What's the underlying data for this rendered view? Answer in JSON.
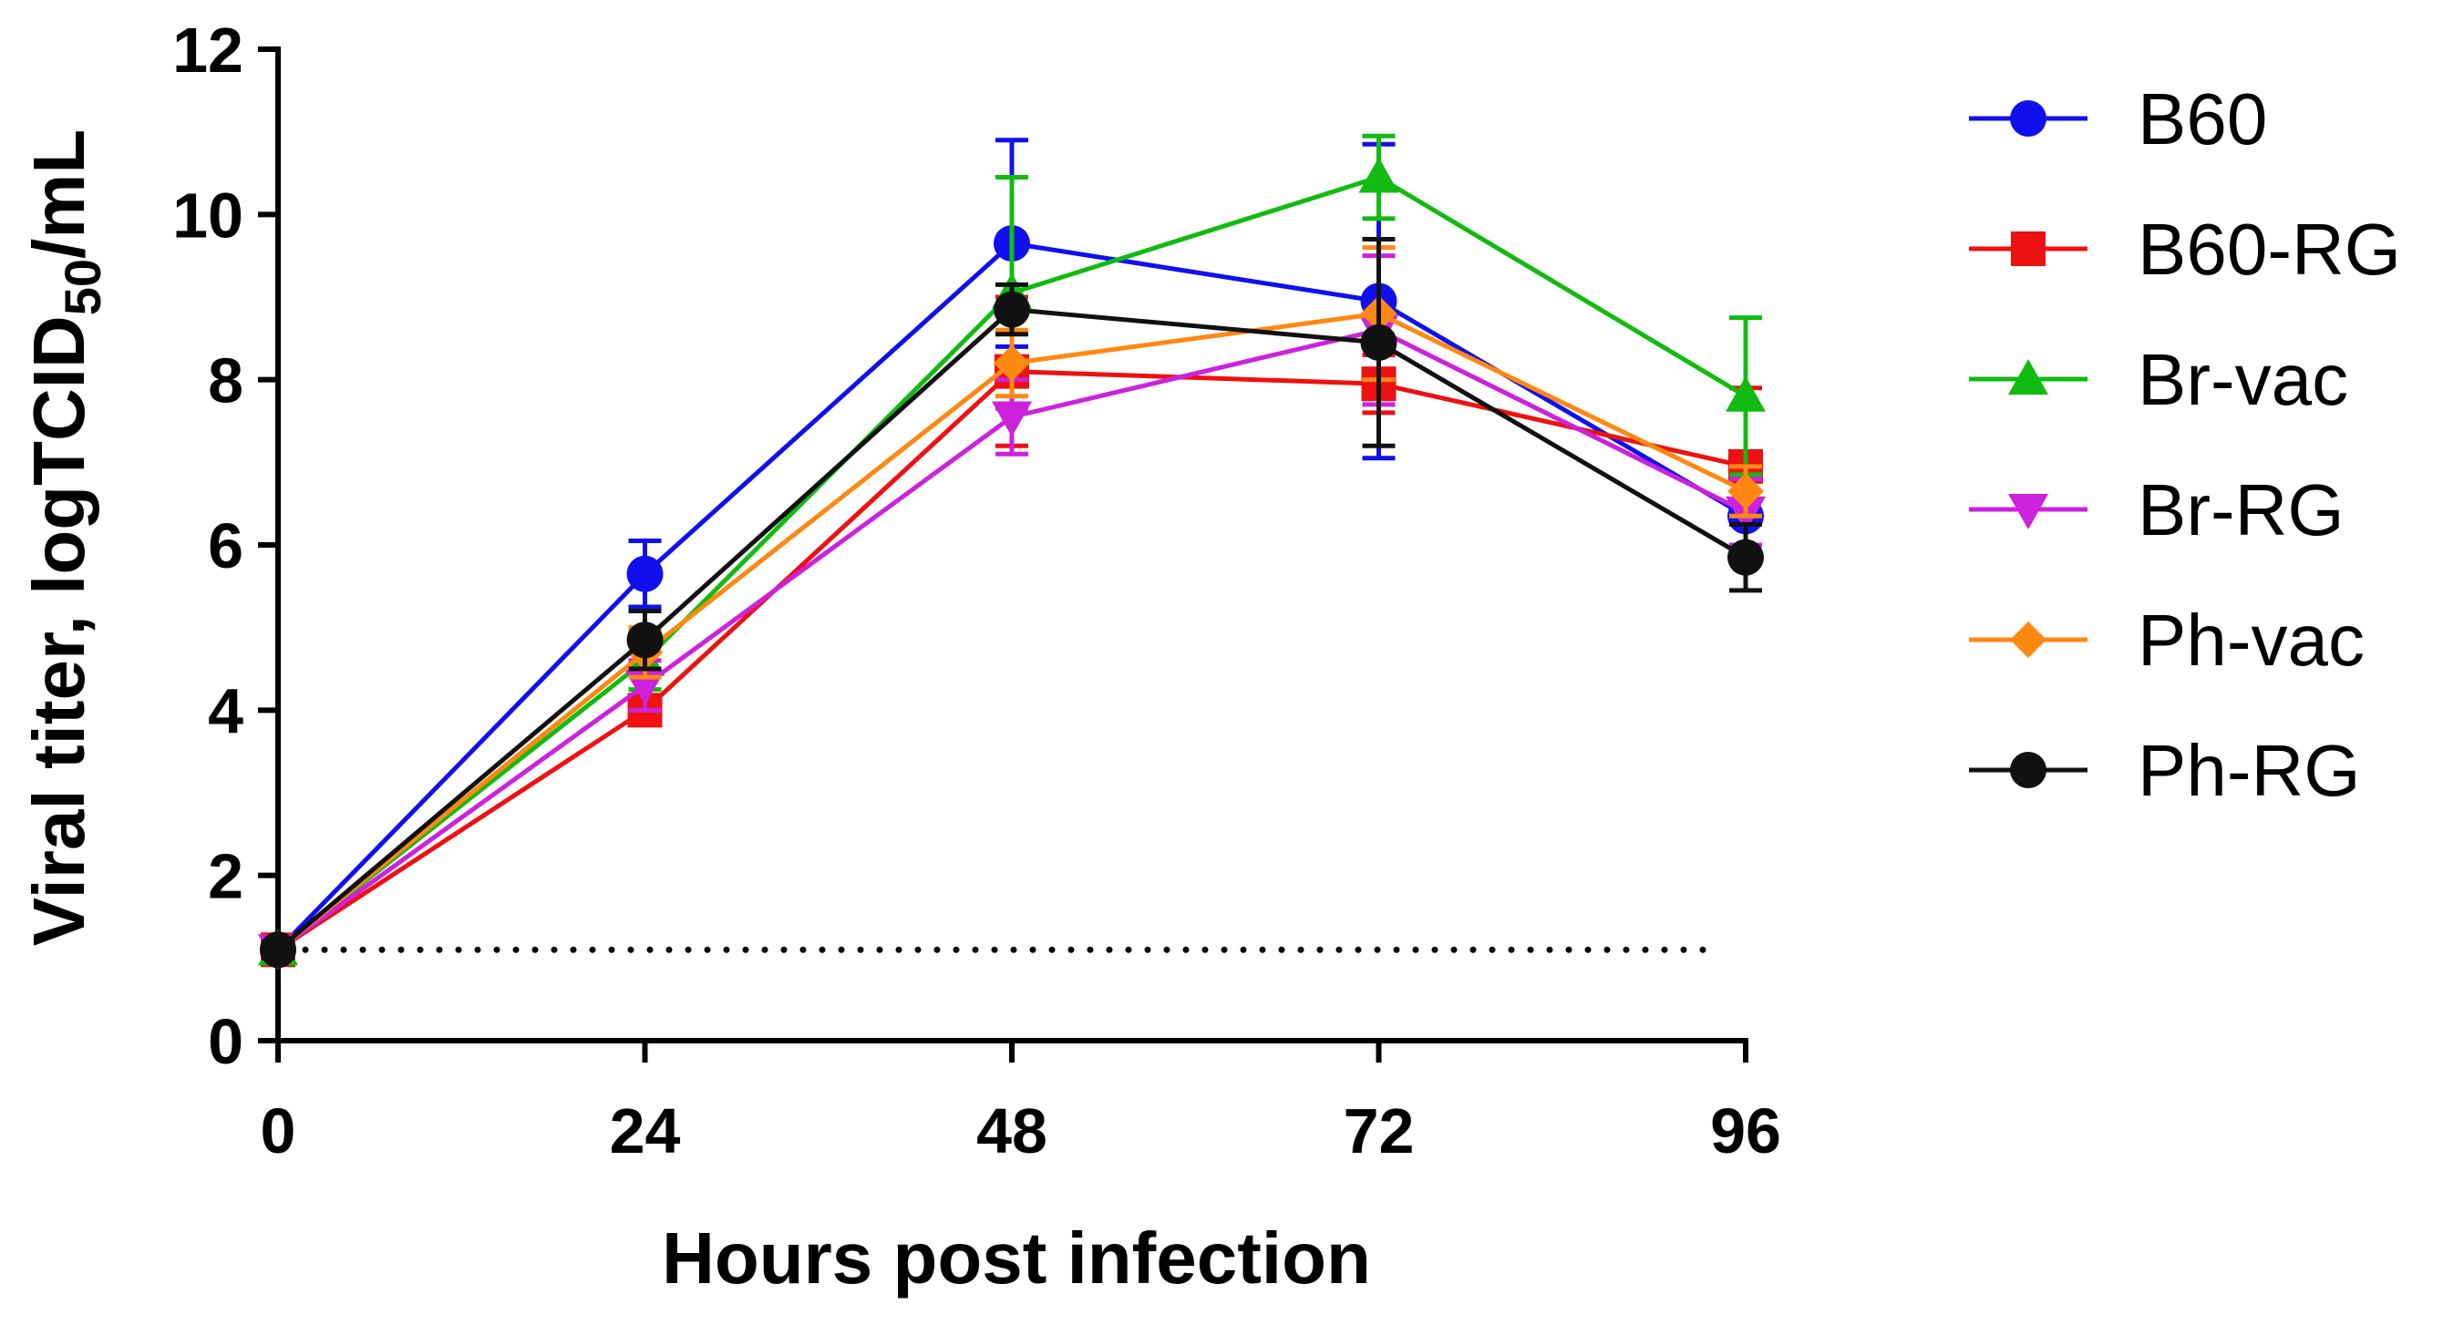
{
  "chart_data": {
    "type": "line",
    "title": "",
    "xlabel": "Hours post infection",
    "ylabel": {
      "main": "Viral titer, logTCID",
      "sub": "50",
      "tail": "/mL"
    },
    "x": [
      0,
      24,
      48,
      72,
      96
    ],
    "xticks": [
      "0",
      "24",
      "48",
      "72",
      "96"
    ],
    "yticks": [
      "0",
      "2",
      "4",
      "6",
      "8",
      "10",
      "12"
    ],
    "xlim": [
      0,
      96
    ],
    "ylim": [
      0,
      12
    ],
    "detection_limit": 1.1,
    "legend_position": "right",
    "series": [
      {
        "name": "B60",
        "color": "#1010ee",
        "marker": "circle",
        "values": [
          1.1,
          5.65,
          9.65,
          8.95,
          6.35
        ],
        "errors": [
          0.1,
          0.4,
          1.25,
          1.9,
          0.45
        ]
      },
      {
        "name": "B60-RG",
        "color": "#ee1111",
        "marker": "square",
        "values": [
          1.1,
          4.0,
          8.1,
          7.95,
          6.95
        ],
        "errors": [
          0.1,
          0.15,
          0.9,
          0.35,
          0.95
        ]
      },
      {
        "name": "Br-vac",
        "color": "#11bb11",
        "marker": "triangle-up",
        "values": [
          1.1,
          4.6,
          9.05,
          10.45,
          7.8
        ],
        "errors": [
          0.1,
          0.35,
          1.4,
          0.5,
          0.95
        ]
      },
      {
        "name": "Br-RG",
        "color": "#cc22dd",
        "marker": "triangle-down",
        "values": [
          1.1,
          4.3,
          7.55,
          8.6,
          6.4
        ],
        "errors": [
          0.1,
          0.3,
          0.45,
          0.9,
          0.4
        ]
      },
      {
        "name": "Ph-vac",
        "color": "#ff8811",
        "marker": "diamond",
        "values": [
          1.1,
          4.7,
          8.2,
          8.8,
          6.65
        ],
        "errors": [
          0.1,
          0.3,
          0.4,
          0.8,
          0.3
        ]
      },
      {
        "name": "Ph-RG",
        "color": "#111111",
        "marker": "circle",
        "values": [
          1.1,
          4.85,
          8.85,
          8.45,
          5.85
        ],
        "errors": [
          0.1,
          0.35,
          0.3,
          1.25,
          0.4
        ]
      }
    ]
  }
}
